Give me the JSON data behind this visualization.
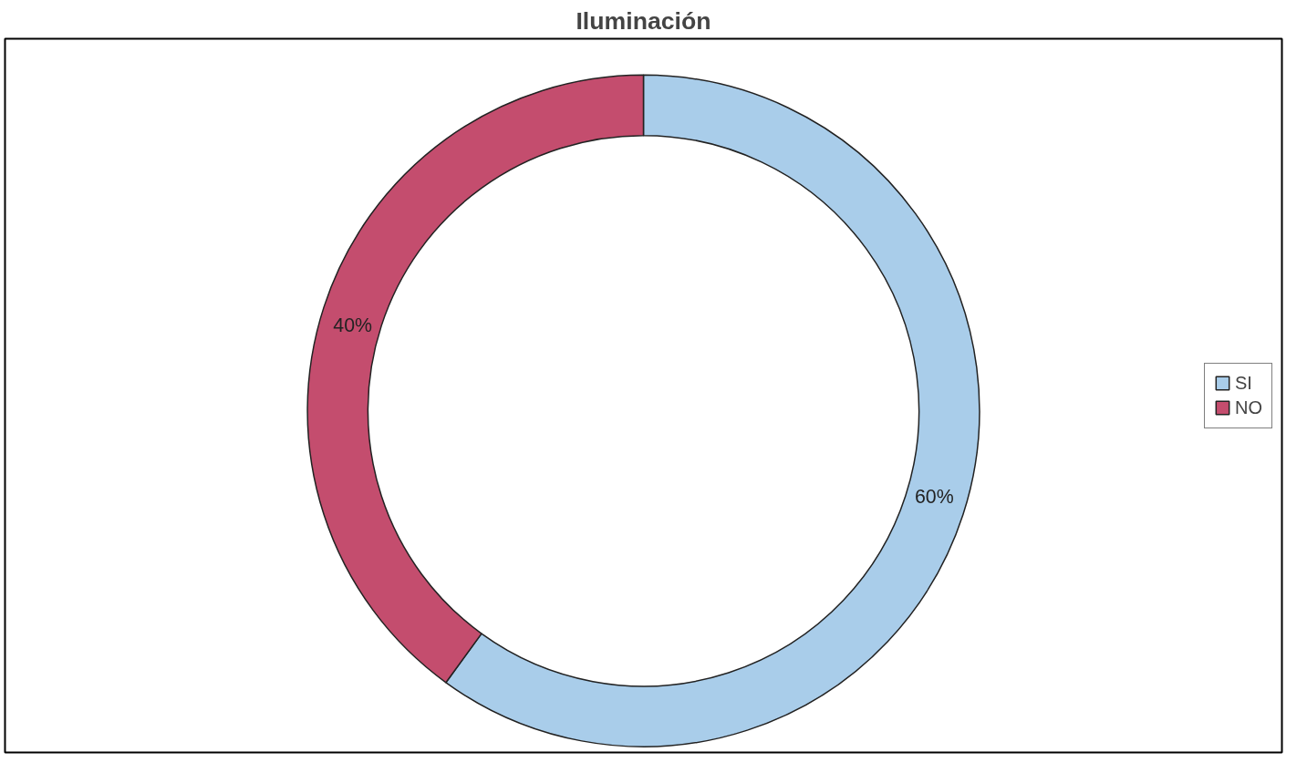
{
  "chart_data": {
    "type": "donut",
    "title": "Iluminación",
    "categories": [
      "SI",
      "NO"
    ],
    "values": [
      60,
      40
    ],
    "colors": [
      "#a9cdea",
      "#c44d6e"
    ],
    "value_labels": [
      "60%",
      "40%"
    ],
    "legend": "right"
  }
}
